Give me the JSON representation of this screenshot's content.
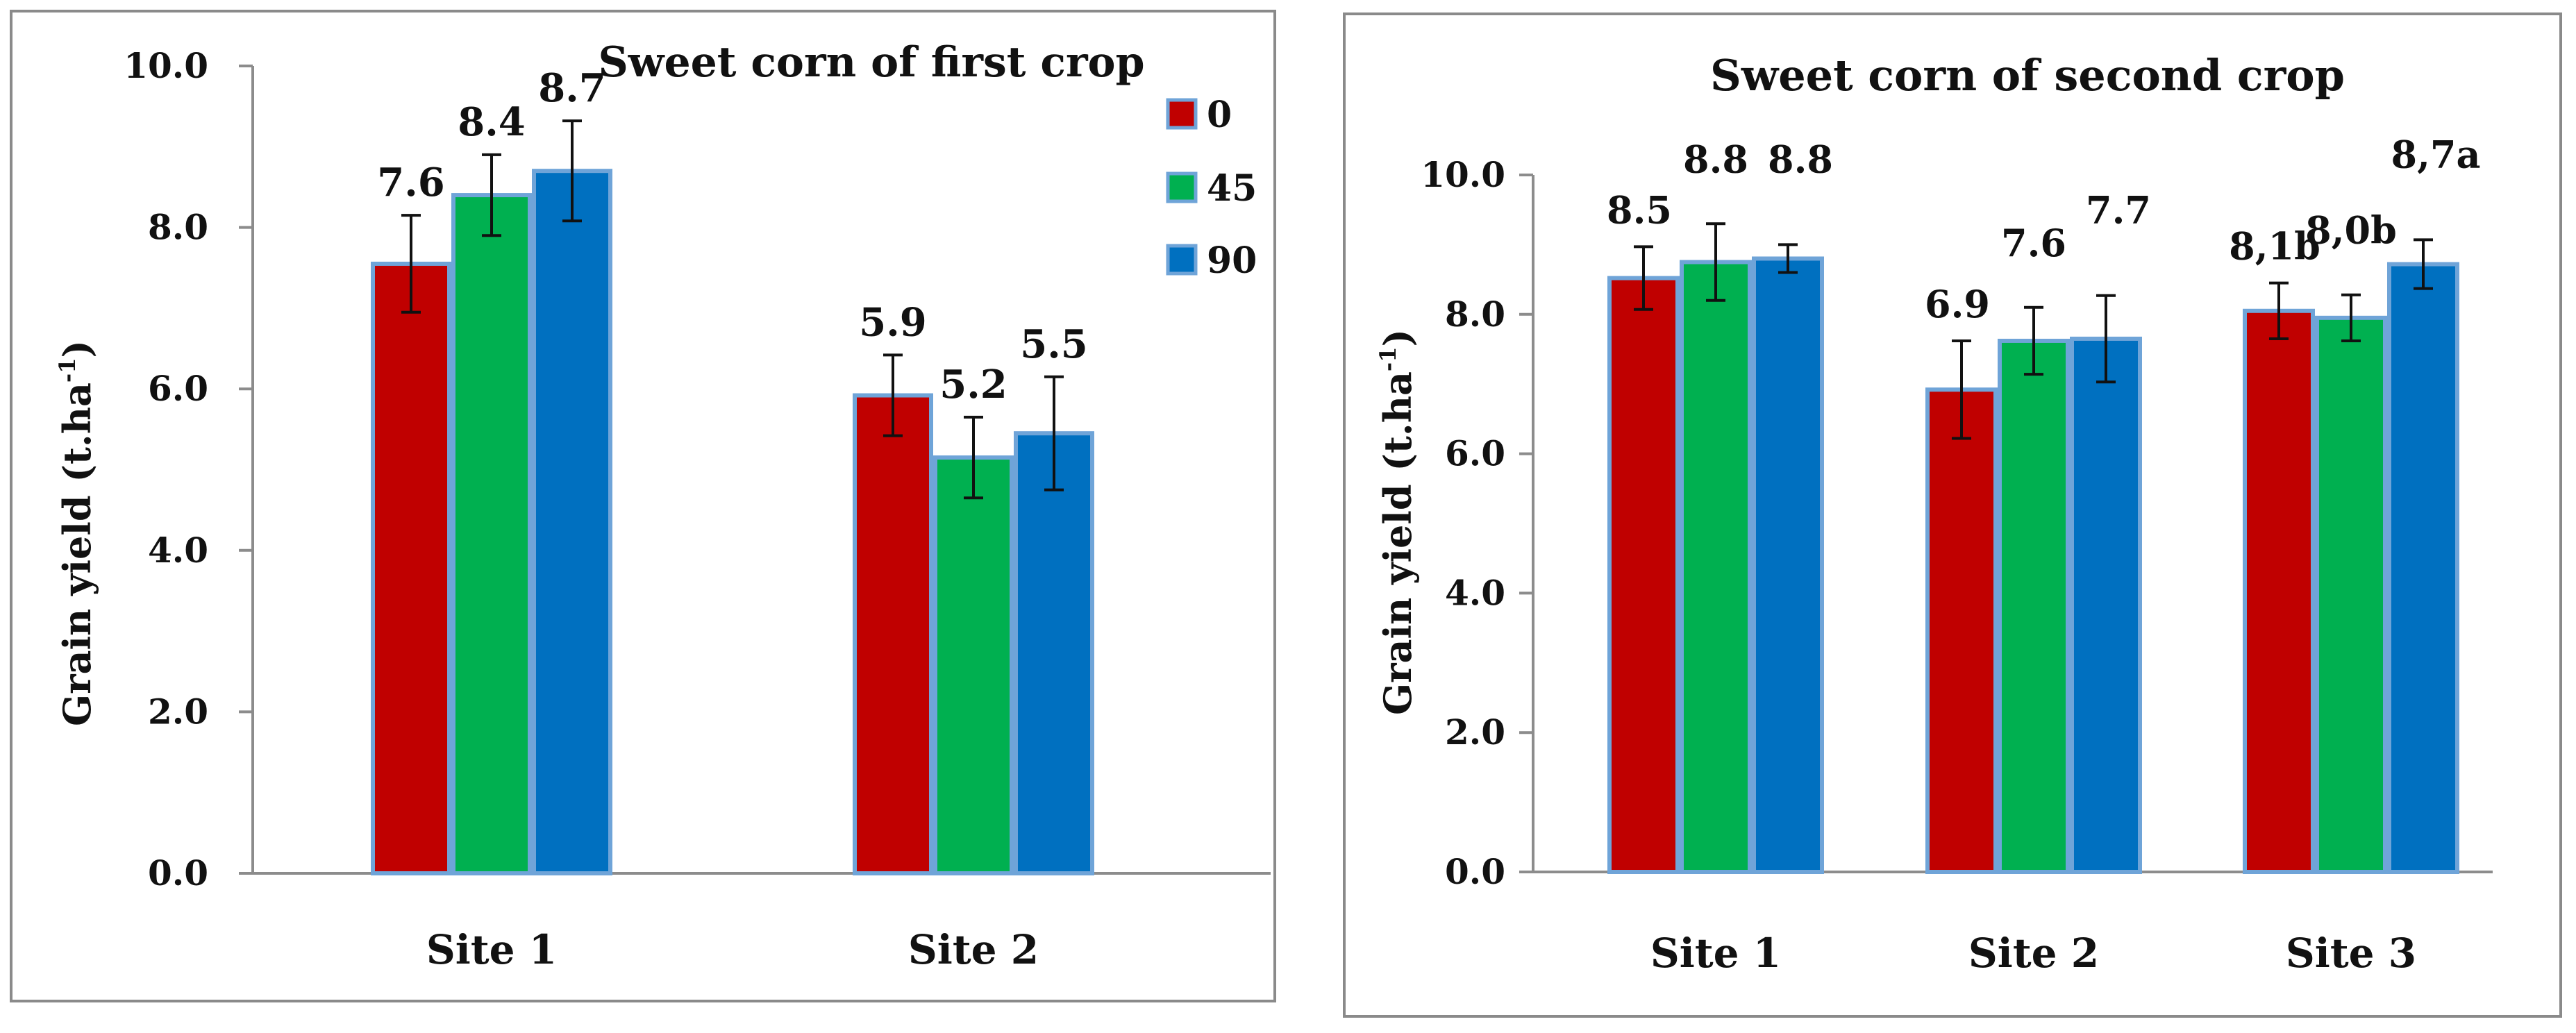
{
  "chart_data": [
    {
      "type": "bar",
      "title": "Sweet corn of  first crop",
      "xlabel": "",
      "ylabel": "Grain yield (t.ha-1)",
      "ylabel_main": "Grain yield (t.ha",
      "ylabel_sup": "-1",
      "ylabel_end": ")",
      "ylim": [
        0,
        10
      ],
      "yticks": [
        "0.0",
        "2.0",
        "4.0",
        "6.0",
        "8.0",
        "10.0"
      ],
      "categories": [
        "Site 1",
        "Site 2"
      ],
      "legend": {
        "position": "top-right",
        "entries": [
          "0",
          "45",
          "90"
        ]
      },
      "series": [
        {
          "name": "0",
          "color": "#c00000",
          "values": [
            7.55,
            5.92
          ],
          "errors": [
            0.6,
            0.5
          ],
          "labels": [
            "7.6",
            "5.9"
          ]
        },
        {
          "name": "45",
          "color": "#00b050",
          "values": [
            8.4,
            5.15
          ],
          "errors": [
            0.5,
            0.5
          ],
          "labels": [
            "8.4",
            "5.2"
          ]
        },
        {
          "name": "90",
          "color": "#0070c0",
          "values": [
            8.7,
            5.45
          ],
          "errors": [
            0.62,
            0.7
          ],
          "labels": [
            "8.7",
            "5.5"
          ]
        }
      ]
    },
    {
      "type": "bar",
      "title": "Sweet corn of second crop",
      "xlabel": "",
      "ylabel": "Grain yield (t.ha-1)",
      "ylabel_main": "Grain yield (t.ha",
      "ylabel_sup": "-1",
      "ylabel_end": ")",
      "ylim": [
        0,
        10
      ],
      "yticks": [
        "0.0",
        "2.0",
        "4.0",
        "6.0",
        "8.0",
        "10.0"
      ],
      "categories": [
        "Site 1",
        "Site 2",
        "Site 3"
      ],
      "series": [
        {
          "name": "0",
          "color": "#c00000",
          "values": [
            8.52,
            6.92,
            8.05
          ],
          "errors": [
            0.45,
            0.7,
            0.4
          ],
          "labels": [
            "8.5",
            "6.9",
            "8,1b"
          ]
        },
        {
          "name": "45",
          "color": "#00b050",
          "values": [
            8.75,
            7.62,
            7.95
          ],
          "errors": [
            0.55,
            0.48,
            0.33
          ],
          "labels": [
            "8.8",
            "7.6",
            "8,0b"
          ]
        },
        {
          "name": "90",
          "color": "#0070c0",
          "values": [
            8.8,
            7.65,
            8.72
          ],
          "errors": [
            0.2,
            0.62,
            0.35
          ],
          "labels": [
            "8.8",
            "7.7",
            "8,7a"
          ]
        }
      ]
    }
  ]
}
